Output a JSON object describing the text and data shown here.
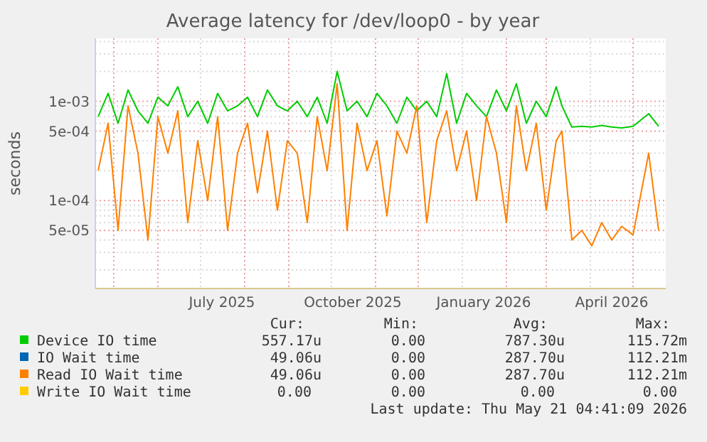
{
  "chart_data": {
    "type": "line",
    "title": "Average latency for /dev/loop0 - by year",
    "ylabel": "seconds",
    "log": "y",
    "grid": true,
    "legend": "bottom",
    "xlim": [
      "2025-04-18",
      "2026-05-24"
    ],
    "xticks": [
      {
        "value": "2025-05-01",
        "label": null
      },
      {
        "value": "2025-06-01",
        "label": null
      },
      {
        "value": "2025-07-01",
        "label": null
      },
      {
        "value": "2025-07-16",
        "label": "July 2025"
      },
      {
        "value": "2025-08-01",
        "label": null
      },
      {
        "value": "2025-09-01",
        "label": null
      },
      {
        "value": "2025-10-01",
        "label": null
      },
      {
        "value": "2025-10-16",
        "label": "October 2025"
      },
      {
        "value": "2025-11-01",
        "label": null
      },
      {
        "value": "2025-12-01",
        "label": null
      },
      {
        "value": "2026-01-01",
        "label": null
      },
      {
        "value": "2026-01-16",
        "label": "January 2026"
      },
      {
        "value": "2026-02-01",
        "label": null
      },
      {
        "value": "2026-03-01",
        "label": null
      },
      {
        "value": "2026-04-01",
        "label": null
      },
      {
        "value": "2026-04-16",
        "label": "April 2026"
      },
      {
        "value": "2026-05-01",
        "label": null
      }
    ],
    "ylim": [
      1.3e-05,
      0.0043
    ],
    "yticks": [
      {
        "value": 2e-05,
        "label": null
      },
      {
        "value": 3e-05,
        "label": null
      },
      {
        "value": 4e-05,
        "label": null
      },
      {
        "value": 5e-05,
        "label": "5e-05"
      },
      {
        "value": 6e-05,
        "label": null
      },
      {
        "value": 7e-05,
        "label": null
      },
      {
        "value": 8e-05,
        "label": null
      },
      {
        "value": 9e-05,
        "label": null
      },
      {
        "value": 0.0001,
        "label": "1e-04"
      },
      {
        "value": 0.0002,
        "label": null
      },
      {
        "value": 0.0003,
        "label": null
      },
      {
        "value": 0.0004,
        "label": null
      },
      {
        "value": 0.0005,
        "label": "5e-04"
      },
      {
        "value": 0.0006,
        "label": null
      },
      {
        "value": 0.0007,
        "label": null
      },
      {
        "value": 0.0008,
        "label": null
      },
      {
        "value": 0.0009,
        "label": null
      },
      {
        "value": 0.001,
        "label": "1e-03"
      },
      {
        "value": 0.002,
        "label": null
      },
      {
        "value": 0.003,
        "label": null
      },
      {
        "value": 0.004,
        "label": null
      }
    ],
    "x": [
      "2025-04-20",
      "2025-04-27",
      "2025-05-04",
      "2025-05-11",
      "2025-05-18",
      "2025-05-25",
      "2025-06-01",
      "2025-06-08",
      "2025-06-15",
      "2025-06-22",
      "2025-06-29",
      "2025-07-06",
      "2025-07-13",
      "2025-07-20",
      "2025-07-27",
      "2025-08-03",
      "2025-08-10",
      "2025-08-17",
      "2025-08-24",
      "2025-08-31",
      "2025-09-07",
      "2025-09-14",
      "2025-09-21",
      "2025-09-28",
      "2025-10-05",
      "2025-10-12",
      "2025-10-19",
      "2025-10-26",
      "2025-11-02",
      "2025-11-09",
      "2025-11-16",
      "2025-11-23",
      "2025-11-30",
      "2025-12-07",
      "2025-12-14",
      "2025-12-21",
      "2025-12-28",
      "2026-01-04",
      "2026-01-11",
      "2026-01-18",
      "2026-01-25",
      "2026-02-01",
      "2026-02-08",
      "2026-02-15",
      "2026-02-22",
      "2026-03-01",
      "2026-03-08",
      "2026-03-12",
      "2026-03-19",
      "2026-03-26",
      "2026-04-02",
      "2026-04-09",
      "2026-04-16",
      "2026-04-23",
      "2026-05-01",
      "2026-05-12",
      "2026-05-19"
    ],
    "series": [
      {
        "name": "Device IO time",
        "color": "#00cc00",
        "values": [
          0.0007,
          0.0012,
          0.0006,
          0.0013,
          0.0008,
          0.0006,
          0.0011,
          0.0009,
          0.0014,
          0.0007,
          0.001,
          0.0006,
          0.0012,
          0.0008,
          0.0009,
          0.0011,
          0.0007,
          0.0013,
          0.0009,
          0.0008,
          0.001,
          0.0007,
          0.0011,
          0.0006,
          0.002,
          0.0008,
          0.001,
          0.0007,
          0.0012,
          0.0009,
          0.0006,
          0.0011,
          0.0008,
          0.001,
          0.0007,
          0.0019,
          0.0006,
          0.0012,
          0.0009,
          0.0007,
          0.0013,
          0.0008,
          0.0015,
          0.0006,
          0.001,
          0.0007,
          0.0014,
          0.0009,
          0.00055,
          0.00056,
          0.00055,
          0.00057,
          0.00055,
          0.00054,
          0.00056,
          0.00075,
          0.00056
        ]
      },
      {
        "name": "IO Wait time",
        "color": "#0066b3",
        "values": [
          null,
          null,
          null,
          null,
          null,
          null,
          null,
          null,
          null,
          null,
          null,
          null,
          null,
          null,
          null,
          null,
          null,
          null,
          null,
          null,
          null,
          null,
          null,
          null,
          null,
          null,
          null,
          null,
          null,
          null,
          null,
          null,
          null,
          null,
          null,
          null,
          null,
          null,
          null,
          null,
          null,
          null,
          null,
          null,
          null,
          null,
          null,
          null,
          null,
          null,
          null,
          null,
          null,
          null,
          null,
          null,
          null
        ]
      },
      {
        "name": "Read IO Wait time",
        "color": "#ff8000",
        "values": [
          0.0002,
          0.0006,
          5e-05,
          0.0009,
          0.0003,
          4e-05,
          0.0007,
          0.0003,
          0.0008,
          6e-05,
          0.0004,
          0.0001,
          0.0007,
          5e-05,
          0.0003,
          0.0006,
          0.00012,
          0.0005,
          8e-05,
          0.0004,
          0.0003,
          6e-05,
          0.0007,
          0.0002,
          0.0015,
          5e-05,
          0.0006,
          0.0002,
          0.0004,
          7e-05,
          0.0005,
          0.0003,
          0.0009,
          6e-05,
          0.0004,
          0.0008,
          0.0002,
          0.0005,
          0.0001,
          0.0007,
          0.0003,
          6e-05,
          0.0009,
          0.0002,
          0.0006,
          8e-05,
          0.0004,
          0.0005,
          4e-05,
          5e-05,
          3.5e-05,
          6e-05,
          4e-05,
          5.5e-05,
          4.5e-05,
          0.0003,
          5e-05
        ]
      },
      {
        "name": "Write IO Wait time",
        "color": "#ffcc00",
        "values": [
          null,
          null,
          null,
          null,
          null,
          null,
          null,
          null,
          null,
          null,
          null,
          null,
          null,
          null,
          null,
          null,
          null,
          null,
          null,
          null,
          null,
          null,
          null,
          null,
          null,
          null,
          null,
          null,
          null,
          null,
          null,
          null,
          null,
          null,
          null,
          null,
          null,
          null,
          null,
          null,
          null,
          null,
          null,
          null,
          null,
          null,
          null,
          null,
          null,
          null,
          null,
          null,
          null,
          null,
          null,
          null,
          null
        ]
      }
    ],
    "annotations": [
      "Cur:",
      "Min:",
      "Avg:",
      "Max:",
      "557.17u",
      "0.00",
      "787.30u",
      "115.72m",
      "49.06u",
      "0.00",
      "287.70u",
      "112.21m",
      "49.06u",
      "0.00",
      "287.70u",
      "112.21m",
      "0.00",
      "0.00",
      "0.00",
      "0.00",
      "Last update: Thu May 21 04:41:09 2026"
    ]
  }
}
